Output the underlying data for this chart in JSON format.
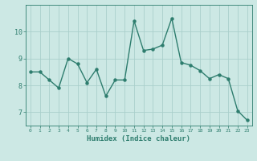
{
  "x": [
    0,
    1,
    2,
    3,
    4,
    5,
    6,
    7,
    8,
    9,
    10,
    11,
    12,
    13,
    14,
    15,
    16,
    17,
    18,
    19,
    20,
    21,
    22,
    23
  ],
  "y": [
    8.5,
    8.5,
    8.2,
    7.9,
    9.0,
    8.8,
    8.1,
    8.6,
    7.6,
    8.2,
    8.2,
    10.4,
    9.3,
    9.35,
    9.5,
    10.5,
    8.85,
    8.75,
    8.55,
    8.25,
    8.4,
    8.25,
    7.05,
    6.7
  ],
  "title": "",
  "xlabel": "Humidex (Indice chaleur)",
  "ylabel": "",
  "xlim": [
    -0.5,
    23.5
  ],
  "ylim": [
    6.5,
    11.0
  ],
  "yticks": [
    7,
    8,
    9,
    10
  ],
  "xticks": [
    0,
    1,
    2,
    3,
    4,
    5,
    6,
    7,
    8,
    9,
    10,
    11,
    12,
    13,
    14,
    15,
    16,
    17,
    18,
    19,
    20,
    21,
    22,
    23
  ],
  "line_color": "#2e7d6e",
  "bg_color": "#cce8e4",
  "grid_color": "#aacfcb",
  "tick_color": "#2e7d6e",
  "label_color": "#2e7d6e",
  "marker": "o",
  "marker_size": 2.2,
  "line_width": 1.0
}
